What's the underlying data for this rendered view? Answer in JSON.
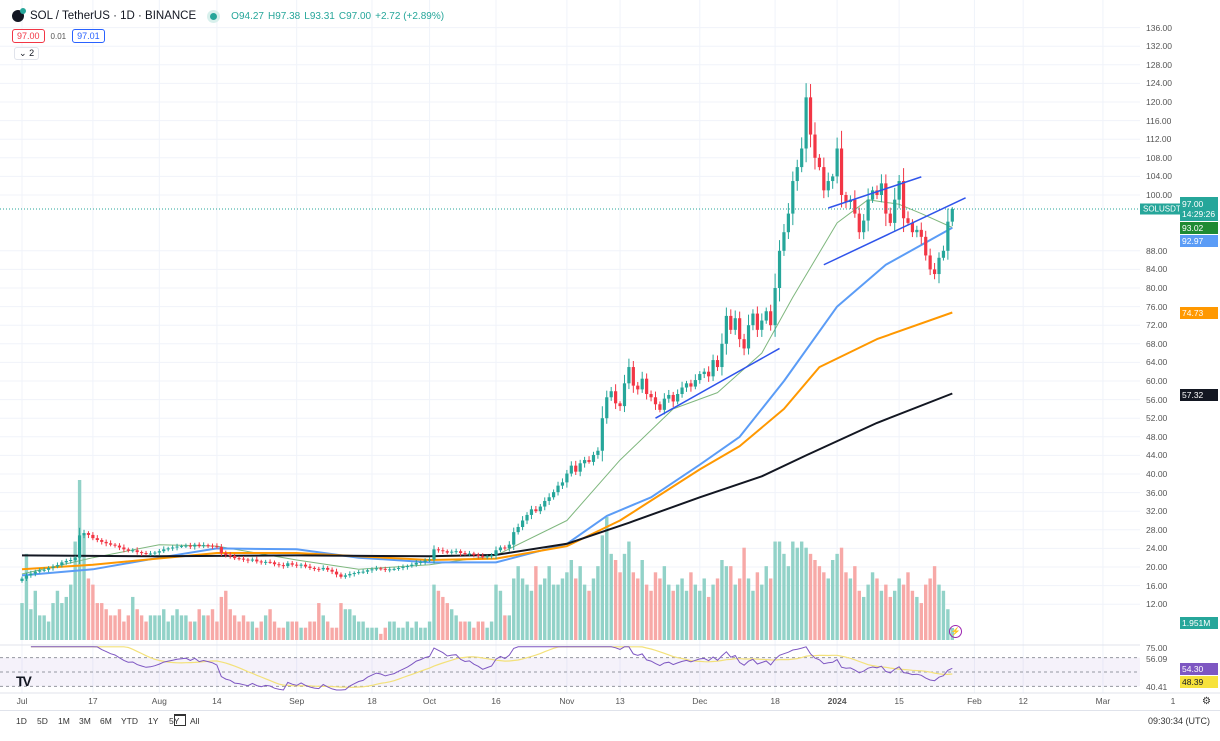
{
  "header": {
    "symbol_title": "SOL / TetherUS · 1D · BINANCE",
    "ohlc": {
      "o_label": "O",
      "o": "94.27",
      "h_label": "H",
      "h": "97.38",
      "l_label": "L",
      "l": "93.31",
      "c_label": "C",
      "c": "97.00",
      "change": "+2.72 (+2.89%)"
    },
    "sell_price": "97.00",
    "spread": "0.01",
    "buy_price": "97.01",
    "indicators_collapsed_count": "2"
  },
  "price_axis": {
    "labels": [
      "136.00",
      "132.00",
      "128.00",
      "124.00",
      "120.00",
      "116.00",
      "112.00",
      "108.00",
      "104.00",
      "100.00",
      "88.00",
      "84.00",
      "80.00",
      "76.00",
      "72.00",
      "68.00",
      "64.00",
      "60.00",
      "56.00",
      "52.00",
      "48.00",
      "44.00",
      "40.00",
      "36.00",
      "32.00",
      "28.00",
      "24.00",
      "20.00",
      "16.00",
      "12.00"
    ],
    "symbol_tag": "SOLUSDT",
    "last_price": "97.00",
    "countdown": "14:29:26",
    "ma_values": [
      {
        "value": "93.02",
        "color": "#1e8a33"
      },
      {
        "value": "92.97",
        "color": "#5b9cf6"
      },
      {
        "value": "74.73",
        "color": "#ff9800"
      },
      {
        "value": "57.32",
        "color": "#131722"
      }
    ],
    "volume_value": "1.951M"
  },
  "rsi_axis": {
    "top_label": "75.00",
    "upper": "56.09",
    "rsi_value": "54.30",
    "rsi_ma_value": "48.39",
    "lower": "40.41"
  },
  "time_axis": {
    "labels": [
      {
        "text": "Jul",
        "date": "2023-07-01"
      },
      {
        "text": "17",
        "date": "2023-07-17"
      },
      {
        "text": "Aug",
        "date": "2023-08-01"
      },
      {
        "text": "14",
        "date": "2023-08-14"
      },
      {
        "text": "Sep",
        "date": "2023-09-01"
      },
      {
        "text": "18",
        "date": "2023-09-18"
      },
      {
        "text": "Oct",
        "date": "2023-10-01"
      },
      {
        "text": "16",
        "date": "2023-10-16"
      },
      {
        "text": "Nov",
        "date": "2023-11-01"
      },
      {
        "text": "13",
        "date": "2023-11-13"
      },
      {
        "text": "Dec",
        "date": "2023-12-01"
      },
      {
        "text": "18",
        "date": "2023-12-18"
      },
      {
        "text": "2024",
        "date": "2024-01-01"
      },
      {
        "text": "15",
        "date": "2024-01-15"
      },
      {
        "text": "Feb",
        "date": "2024-02-01"
      },
      {
        "text": "12",
        "date": "2024-02-12"
      },
      {
        "text": "Mar",
        "date": "2024-03-01"
      }
    ],
    "trailing_label": "1"
  },
  "bottom_bar": {
    "ranges": [
      "1D",
      "5D",
      "1M",
      "3M",
      "6M",
      "YTD",
      "1Y",
      "5Y",
      "All"
    ],
    "clock": "09:30:34 (UTC)"
  },
  "colors": {
    "up": "#26a69a",
    "down": "#f23645",
    "vol_up": "#92d2c8",
    "vol_down": "#f7a9a7",
    "ma20": "#7fb77e",
    "ma50": "#5b9cf6",
    "ma100": "#ff9800",
    "ma200": "#131722",
    "rsi": "#7e57c2",
    "rsi_ma": "#f3e17a",
    "trendline": "#2f54eb",
    "price_line": "#26a69a"
  },
  "chart_data": {
    "type": "candlestick",
    "symbol": "SOL / TetherUS",
    "interval": "1D",
    "start_date": "2023-07-01",
    "ylim": [
      10,
      138
    ],
    "grid": true,
    "last_candle": {
      "open": 94.27,
      "high": 97.38,
      "low": 93.31,
      "close": 97.0
    },
    "close": [
      17.5,
      18.2,
      18.6,
      19.0,
      19.3,
      19.4,
      19.8,
      20.1,
      20.4,
      21.0,
      21.3,
      21.5,
      22.0,
      26.8,
      27.3,
      26.9,
      26.2,
      25.8,
      25.4,
      25.1,
      24.8,
      24.6,
      24.2,
      23.8,
      23.5,
      23.6,
      23.2,
      23.0,
      22.8,
      22.9,
      23.1,
      23.4,
      23.8,
      24.0,
      24.2,
      24.4,
      24.5,
      24.6,
      24.4,
      24.8,
      24.5,
      24.7,
      24.6,
      24.5,
      24.3,
      23.0,
      22.6,
      22.4,
      21.9,
      21.8,
      21.6,
      21.4,
      21.6,
      21.2,
      21.0,
      21.1,
      21.0,
      20.6,
      20.4,
      20.2,
      20.8,
      20.5,
      20.3,
      20.5,
      20.1,
      19.8,
      19.6,
      19.5,
      19.8,
      19.4,
      19.0,
      18.4,
      17.9,
      18.2,
      18.5,
      18.7,
      18.9,
      19.0,
      19.3,
      19.5,
      19.7,
      19.6,
      19.4,
      19.5,
      19.6,
      19.8,
      20.0,
      20.2,
      20.5,
      20.9,
      21.1,
      21.4,
      21.6,
      23.8,
      23.6,
      23.4,
      23.1,
      23.3,
      23.4,
      23.0,
      22.8,
      22.9,
      22.6,
      22.4,
      22.1,
      22.3,
      22.5,
      23.6,
      24.2,
      24.0,
      24.8,
      27.5,
      28.6,
      30.0,
      31.2,
      32.4,
      32.0,
      33.0,
      34.2,
      35.0,
      36.1,
      37.5,
      38.2,
      40.1,
      41.8,
      40.5,
      42.3,
      43.0,
      42.6,
      44.1,
      45.0,
      52.0,
      56.5,
      57.8,
      55.2,
      54.6,
      59.5,
      63.0,
      59.0,
      58.2,
      60.5,
      57.2,
      56.5,
      55.0,
      53.8,
      56.2,
      57.0,
      55.6,
      57.2,
      58.6,
      59.5,
      58.8,
      60.2,
      61.5,
      62.0,
      61.0,
      64.5,
      63.0,
      68.0,
      74.0,
      71.0,
      73.5,
      69.0,
      67.0,
      72.0,
      74.5,
      71.0,
      73.0,
      75.0,
      72.0,
      80.0,
      88.0,
      92.0,
      96.0,
      103.0,
      106.0,
      110.0,
      121.0,
      113.0,
      108.0,
      106.0,
      101.0,
      103.0,
      104.0,
      110.0,
      100.0,
      98.5,
      99.0,
      96.0,
      92.0,
      94.5,
      99.0,
      101.0,
      100.0,
      102.5,
      96.0,
      94.0,
      99.0,
      103.0,
      95.0,
      94.0,
      92.0,
      92.5,
      91.0,
      87.0,
      84.0,
      83.0,
      86.5,
      88.0,
      94.27,
      97.0
    ],
    "volume_millions": [
      6,
      14,
      5,
      8,
      4,
      4,
      3,
      6,
      8,
      6,
      7,
      9,
      16,
      26,
      17,
      10,
      9,
      6,
      6,
      5,
      4,
      4,
      5,
      3,
      4,
      7,
      5,
      4,
      3,
      4,
      4,
      4,
      5,
      3,
      4,
      5,
      4,
      4,
      3,
      3,
      5,
      4,
      4,
      5,
      3,
      7,
      8,
      5,
      4,
      3,
      4,
      3,
      3,
      2,
      3,
      4,
      5,
      3,
      2,
      2,
      3,
      3,
      3,
      2,
      2,
      3,
      3,
      6,
      4,
      3,
      2,
      2,
      6,
      5,
      5,
      4,
      3,
      3,
      2,
      2,
      2,
      1,
      2,
      3,
      3,
      2,
      2,
      3,
      2,
      3,
      2,
      2,
      3,
      9,
      8,
      7,
      6,
      5,
      4,
      3,
      3,
      3,
      2,
      3,
      3,
      2,
      3,
      9,
      8,
      4,
      4,
      10,
      12,
      10,
      9,
      8,
      12,
      9,
      10,
      12,
      9,
      9,
      10,
      11,
      13,
      10,
      12,
      9,
      8,
      10,
      12,
      17,
      20,
      14,
      13,
      11,
      14,
      16,
      11,
      10,
      13,
      9,
      8,
      11,
      10,
      12,
      9,
      8,
      9,
      10,
      8,
      11,
      9,
      8,
      10,
      7,
      9,
      10,
      13,
      12,
      12,
      9,
      10,
      15,
      10,
      8,
      11,
      9,
      12,
      10,
      16,
      16,
      14,
      12,
      16,
      15,
      16,
      15,
      14,
      13,
      12,
      11,
      10,
      13,
      14,
      15,
      11,
      10,
      12,
      8,
      7,
      9,
      11,
      10,
      8,
      9,
      7,
      8,
      10,
      9,
      11,
      8,
      7,
      6,
      9,
      10,
      12,
      9,
      8,
      5,
      1.951
    ],
    "moving_averages": [
      {
        "color_key": "ma20",
        "points": [
          [
            "2023-07-01",
            18.5
          ],
          [
            "2023-07-17",
            22
          ],
          [
            "2023-08-01",
            24.8
          ],
          [
            "2023-08-14",
            24.5
          ],
          [
            "2023-09-01",
            21.5
          ],
          [
            "2023-09-15",
            19.5
          ],
          [
            "2023-10-01",
            20.5
          ],
          [
            "2023-10-16",
            22.5
          ],
          [
            "2023-11-01",
            30
          ],
          [
            "2023-11-13",
            43
          ],
          [
            "2023-11-25",
            54
          ],
          [
            "2023-12-05",
            57.5
          ],
          [
            "2023-12-15",
            66
          ],
          [
            "2023-12-22",
            78
          ],
          [
            "2024-01-01",
            94
          ],
          [
            "2024-01-08",
            99
          ],
          [
            "2024-01-15",
            98
          ],
          [
            "2024-01-20",
            96
          ],
          [
            "2024-01-27",
            93.02
          ]
        ]
      },
      {
        "color_key": "ma50",
        "points": [
          [
            "2023-07-01",
            18.2
          ],
          [
            "2023-07-17",
            19.5
          ],
          [
            "2023-08-01",
            22
          ],
          [
            "2023-08-14",
            24
          ],
          [
            "2023-09-01",
            23.8
          ],
          [
            "2023-09-15",
            22
          ],
          [
            "2023-10-01",
            21
          ],
          [
            "2023-10-16",
            21
          ],
          [
            "2023-11-01",
            25
          ],
          [
            "2023-11-10",
            31
          ],
          [
            "2023-11-20",
            35
          ],
          [
            "2023-12-01",
            42
          ],
          [
            "2023-12-10",
            48
          ],
          [
            "2023-12-20",
            60
          ],
          [
            "2024-01-01",
            76
          ],
          [
            "2024-01-12",
            85
          ],
          [
            "2024-01-27",
            92.97
          ]
        ]
      },
      {
        "color_key": "ma100",
        "points": [
          [
            "2023-07-01",
            19.5
          ],
          [
            "2023-07-17",
            20.5
          ],
          [
            "2023-08-14",
            23
          ],
          [
            "2023-09-01",
            23
          ],
          [
            "2023-10-01",
            21.5
          ],
          [
            "2023-10-16",
            21.8
          ],
          [
            "2023-11-01",
            24.5
          ],
          [
            "2023-11-13",
            30
          ],
          [
            "2023-12-01",
            41
          ],
          [
            "2023-12-10",
            46
          ],
          [
            "2023-12-20",
            54
          ],
          [
            "2023-12-28",
            63
          ],
          [
            "2024-01-10",
            69
          ],
          [
            "2024-01-27",
            74.73
          ]
        ]
      },
      {
        "color_key": "ma200",
        "points": [
          [
            "2023-07-01",
            22.5
          ],
          [
            "2023-08-01",
            22.3
          ],
          [
            "2023-09-01",
            22.5
          ],
          [
            "2023-10-01",
            22.3
          ],
          [
            "2023-10-16",
            22.6
          ],
          [
            "2023-11-01",
            25
          ],
          [
            "2023-11-15",
            29.5
          ],
          [
            "2023-12-01",
            35
          ],
          [
            "2023-12-15",
            39.5
          ],
          [
            "2023-12-25",
            44
          ],
          [
            "2024-01-10",
            51
          ],
          [
            "2024-01-27",
            57.32
          ]
        ]
      }
    ],
    "trendlines": [
      [
        [
          "2023-11-21",
          52
        ],
        [
          "2023-12-19",
          67
        ]
      ],
      [
        [
          "2023-12-30",
          97.2
        ],
        [
          "2024-01-20",
          103.9
        ]
      ],
      [
        [
          "2023-12-29",
          85
        ],
        [
          "2024-01-30",
          99.4
        ]
      ]
    ],
    "last_price_line": 97.0,
    "rsi_levels": [
      70,
      50,
      30
    ]
  }
}
